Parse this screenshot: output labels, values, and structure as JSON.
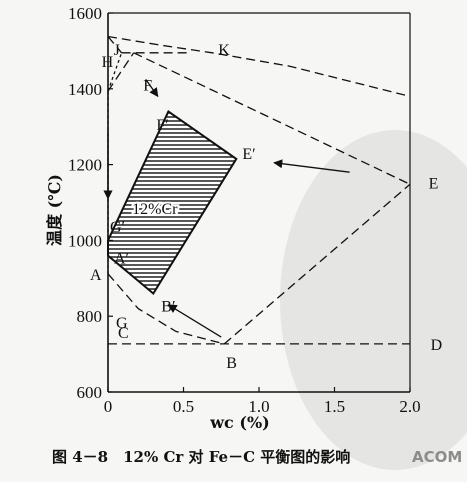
{
  "chart_data": {
    "type": "line",
    "title": "",
    "xlabel": "wc (%)",
    "ylabel": "温度 (℃)",
    "xlim": [
      0,
      2.0
    ],
    "ylim": [
      600,
      1600
    ],
    "xticks": [
      0,
      0.5,
      1.0,
      1.5,
      2.0
    ],
    "xtick_labels": [
      "0",
      "0.5",
      "1.0",
      "1.5",
      "2.0"
    ],
    "yticks": [
      600,
      800,
      1000,
      1200,
      1400,
      1600
    ],
    "ytick_labels": [
      "600",
      "800",
      "1000",
      "1200",
      "1400",
      "1600"
    ],
    "points": [
      {
        "label": "J",
        "x": 0.17,
        "y": 1495
      },
      {
        "label": "K",
        "x": 0.69,
        "y": 1495
      },
      {
        "label": "H",
        "x": 0.09,
        "y": 1495
      },
      {
        "label": "F",
        "x": 0.22,
        "y": 1470
      },
      {
        "label": "F′",
        "x": 0.4,
        "y": 1370
      },
      {
        "label": "G",
        "x": 0.0,
        "y": 912
      },
      {
        "label": "G′",
        "x": 0.0,
        "y": 1075
      },
      {
        "label": "E′",
        "x": 0.85,
        "y": 1215
      },
      {
        "label": "E",
        "x": 2.11,
        "y": 1148
      },
      {
        "label": "A",
        "x": 0.0,
        "y": 912
      },
      {
        "label": "A′",
        "x": 0.0,
        "y": 950
      },
      {
        "label": "B′",
        "x": 0.3,
        "y": 860
      },
      {
        "label": "B",
        "x": 0.77,
        "y": 727
      },
      {
        "label": "C",
        "x": 0.0,
        "y": 727
      },
      {
        "label": "D",
        "x": 2.11,
        "y": 727
      }
    ],
    "series": [
      {
        "values": [
          [
            0.0,
            1538
          ],
          [
            0.35,
            1515
          ],
          [
            0.69,
            1495
          ],
          [
            1.2,
            1460
          ],
          [
            2.0,
            1380
          ]
        ]
      },
      {
        "values": [
          [
            0.0,
            1538
          ],
          [
            0.09,
            1495
          ]
        ]
      },
      {
        "values": [
          [
            0.09,
            1495
          ],
          [
            0.17,
            1495
          ],
          [
            0.53,
            1495
          ]
        ]
      },
      {
        "values": [
          [
            0.0,
            1394
          ],
          [
            0.09,
            1495
          ]
        ]
      },
      {
        "values": [
          [
            0.17,
            1495
          ],
          [
            1.2,
            1300
          ],
          [
            2.0,
            1148
          ]
        ]
      },
      {
        "values": [
          [
            0.0,
            1394
          ],
          [
            0.17,
            1495
          ]
        ]
      },
      {
        "values": [
          [
            0.0,
            1394
          ],
          [
            0.0,
            912
          ]
        ]
      },
      {
        "values": [
          [
            0.0,
            912
          ],
          [
            0.2,
            820
          ],
          [
            0.45,
            760
          ],
          [
            0.77,
            727
          ]
        ]
      },
      {
        "values": [
          [
            0.77,
            727
          ],
          [
            2.0,
            1148
          ]
        ]
      },
      {
        "values": [
          [
            0.0,
            727
          ],
          [
            2.0,
            727
          ]
        ]
      }
    ],
    "shaded_region": {
      "label": "12%Cr",
      "vertices": [
        [
          0.0,
          1000
        ],
        [
          0.4,
          1340
        ],
        [
          0.85,
          1215
        ],
        [
          0.3,
          860
        ],
        [
          0.0,
          960
        ]
      ]
    },
    "annotations": [
      {
        "text": "arrow",
        "from": [
          0.25,
          1425
        ],
        "to": [
          0.33,
          1380
        ]
      },
      {
        "text": "arrow",
        "from": [
          0.0,
          1290
        ],
        "to": [
          0.0,
          1110
        ]
      },
      {
        "text": "arrow",
        "from": [
          1.6,
          1180
        ],
        "to": [
          1.1,
          1205
        ]
      },
      {
        "text": "arrow",
        "from": [
          0.75,
          745
        ],
        "to": [
          0.4,
          830
        ]
      }
    ]
  },
  "figure": {
    "caption": "图 4－8　12% Cr 对 Fe－C 平衡图的影响",
    "watermark": "ACOM"
  }
}
